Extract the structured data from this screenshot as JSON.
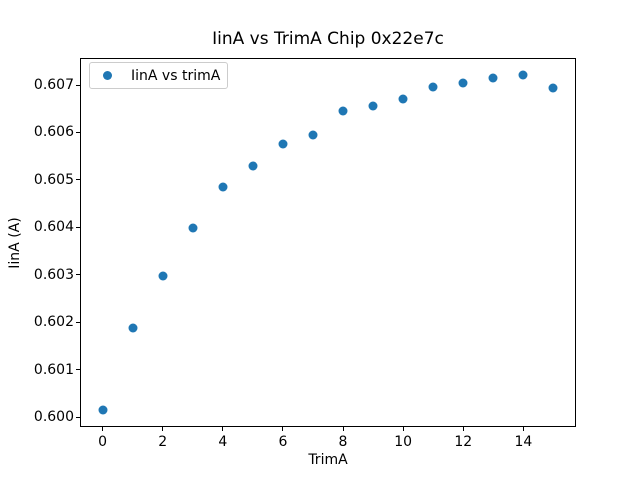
{
  "chart_data": {
    "type": "scatter",
    "title": "IinA vs TrimA Chip 0x22e7c",
    "xlabel": "TrimA",
    "ylabel": "IinA (A)",
    "legend_position": "upper left",
    "legend_entries": [
      {
        "label": "IinA vs trimA",
        "marker": "circle",
        "color": "#1f77b4"
      }
    ],
    "marker_color": "#1f77b4",
    "background_color": "#ffffff",
    "spine_color": "#000000",
    "grid": false,
    "x": [
      0,
      1,
      2,
      3,
      4,
      5,
      6,
      7,
      8,
      9,
      10,
      11,
      12,
      13,
      14,
      15
    ],
    "y": [
      0.60015,
      0.60188,
      0.60297,
      0.60399,
      0.60485,
      0.60529,
      0.60575,
      0.60594,
      0.60645,
      0.60656,
      0.60671,
      0.60695,
      0.60705,
      0.60714,
      0.60721,
      0.60694
    ],
    "xlim": [
      -0.75,
      15.75
    ],
    "ylim": [
      0.59979,
      0.60757
    ],
    "xticks": [
      0,
      2,
      4,
      6,
      8,
      10,
      12,
      14
    ],
    "xtick_labels": [
      "0",
      "2",
      "4",
      "6",
      "8",
      "10",
      "12",
      "14"
    ],
    "yticks": [
      0.6,
      0.601,
      0.602,
      0.603,
      0.604,
      0.605,
      0.606,
      0.607
    ],
    "ytick_labels": [
      "0.600",
      "0.601",
      "0.602",
      "0.603",
      "0.604",
      "0.605",
      "0.606",
      "0.607"
    ]
  }
}
